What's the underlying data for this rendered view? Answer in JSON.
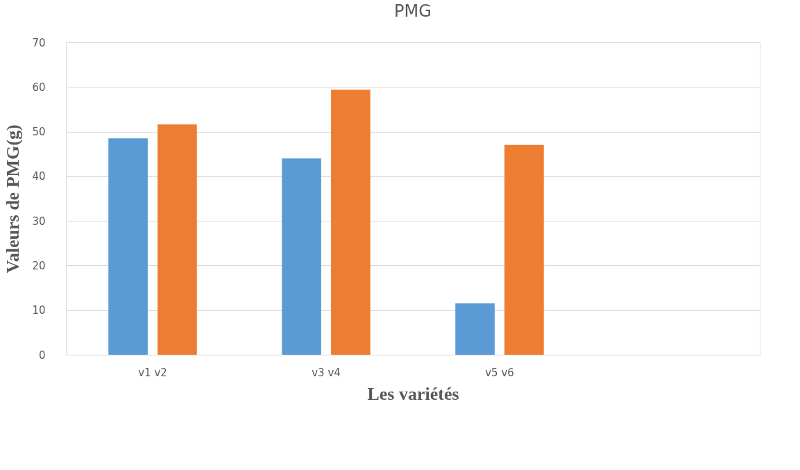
{
  "chart_data": {
    "type": "bar",
    "title": "PMG",
    "xlabel": "Les variétés",
    "ylabel": "Valeurs de PMG(g)",
    "categories": [
      "v1 v2",
      "v3 v4",
      "v5 v6",
      null
    ],
    "series": [
      {
        "color": "#5b9bd5",
        "values": [
          48.5,
          44,
          11.5,
          null
        ]
      },
      {
        "color": "#ed7d31",
        "values": [
          51.6,
          59.4,
          47,
          null
        ]
      }
    ],
    "ylim": [
      0,
      70
    ],
    "yticks": [
      0,
      10,
      20,
      30,
      40,
      50,
      60,
      70
    ],
    "grid": "y",
    "legend": false
  }
}
